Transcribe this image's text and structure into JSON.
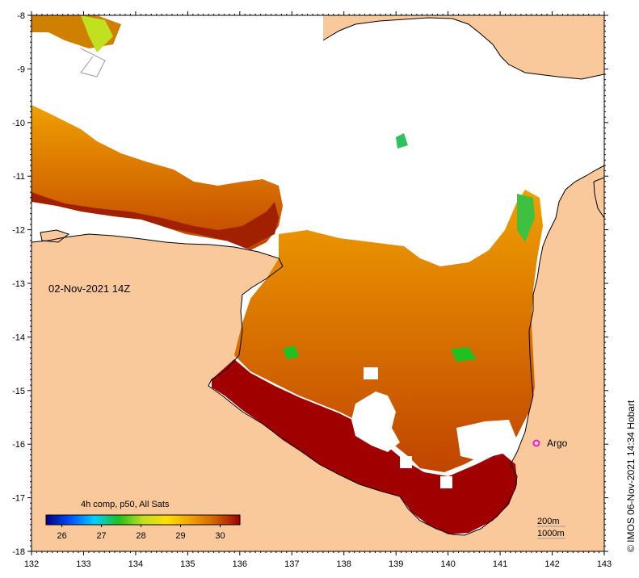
{
  "map": {
    "date_label": "02-Nov-2021 14Z",
    "argo_label": "Argo",
    "credit": "© IMOS 06-Nov-2021 14:34 Hobart",
    "depth_labels": [
      "200m",
      "1000m"
    ],
    "lon_ticks": [
      "132",
      "133",
      "134",
      "135",
      "136",
      "137",
      "138",
      "139",
      "140",
      "141",
      "142",
      "143"
    ],
    "lat_ticks": [
      "-8",
      "-9",
      "-10",
      "-11",
      "-12",
      "-13",
      "-14",
      "-15",
      "-16",
      "-17",
      "-18"
    ],
    "colors": {
      "land": "#f9c99b",
      "no_data": "#ffffff",
      "argo_marker": "#e020e0"
    },
    "colorbar": {
      "title": "4h comp, p50, All Sats",
      "ticks": [
        "26",
        "27",
        "28",
        "29",
        "30"
      ],
      "min_value": 25.6,
      "max_value": 30.5,
      "colors": [
        "#000080",
        "#0050ff",
        "#00d0ff",
        "#20c020",
        "#c0e020",
        "#ffe000",
        "#f0a000",
        "#d06000",
        "#a00000"
      ]
    }
  }
}
